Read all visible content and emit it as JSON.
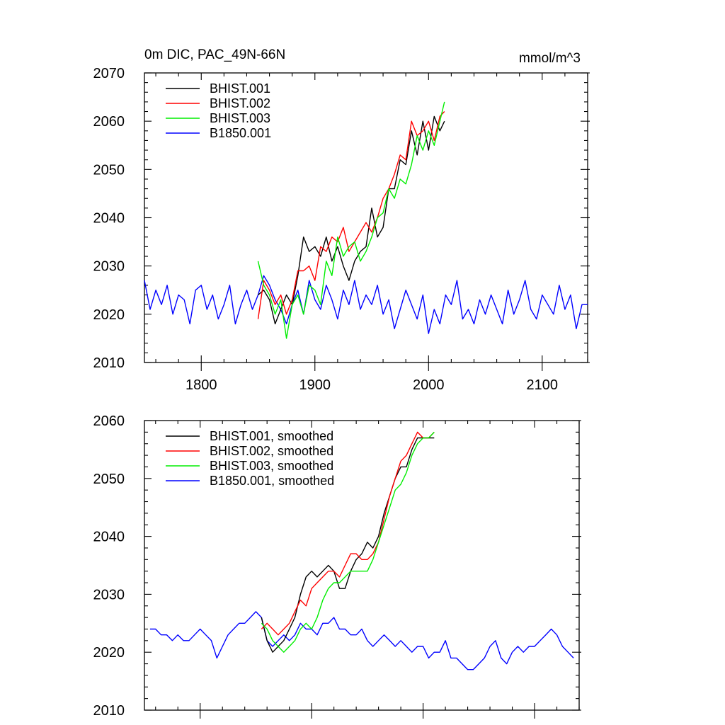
{
  "chart_data": [
    {
      "type": "line",
      "title_left": "0m DIC, PAC_49N-66N",
      "title_right": "mmol/m^3",
      "xlim": [
        1750,
        2140
      ],
      "ylim": [
        2010,
        2070
      ],
      "x_ticks": [
        1800,
        1900,
        2000,
        2100
      ],
      "y_ticks": [
        2010,
        2020,
        2030,
        2040,
        2050,
        2060,
        2070
      ],
      "x_tick_labels_visible": true,
      "legend_position": "top-left",
      "grid": false,
      "series": [
        {
          "name": "BHIST.001",
          "color": "#000000",
          "x": [
            1850,
            1855,
            1860,
            1865,
            1870,
            1875,
            1880,
            1885,
            1890,
            1895,
            1900,
            1905,
            1910,
            1915,
            1920,
            1925,
            1930,
            1935,
            1940,
            1945,
            1950,
            1955,
            1960,
            1965,
            1970,
            1975,
            1980,
            1985,
            1990,
            1995,
            2000,
            2005,
            2010,
            2014
          ],
          "y": [
            2024,
            2025,
            2023,
            2018,
            2021,
            2024,
            2022,
            2028,
            2036,
            2033,
            2034,
            2032,
            2036,
            2031,
            2034,
            2030,
            2027,
            2031,
            2033,
            2034,
            2042,
            2036,
            2038,
            2046,
            2046,
            2052,
            2051,
            2058,
            2053,
            2060,
            2054,
            2061,
            2058,
            2060
          ]
        },
        {
          "name": "BHIST.002",
          "color": "#ff0000",
          "x": [
            1850,
            1855,
            1860,
            1865,
            1870,
            1875,
            1880,
            1885,
            1890,
            1895,
            1900,
            1905,
            1910,
            1915,
            1920,
            1925,
            1930,
            1935,
            1940,
            1945,
            1950,
            1955,
            1960,
            1965,
            1970,
            1975,
            1980,
            1985,
            1990,
            1995,
            2000,
            2005,
            2010,
            2014
          ],
          "y": [
            2019,
            2027,
            2025,
            2022,
            2024,
            2020,
            2023,
            2029,
            2029,
            2030,
            2027,
            2034,
            2033,
            2036,
            2035,
            2038,
            2033,
            2035,
            2037,
            2039,
            2037,
            2040,
            2044,
            2046,
            2049,
            2053,
            2052,
            2060,
            2057,
            2058,
            2060,
            2056,
            2061,
            2062
          ]
        },
        {
          "name": "BHIST.003",
          "color": "#00ee00",
          "x": [
            1850,
            1855,
            1860,
            1865,
            1870,
            1875,
            1880,
            1885,
            1890,
            1895,
            1900,
            1905,
            1910,
            1915,
            1920,
            1925,
            1930,
            1935,
            1940,
            1945,
            1950,
            1955,
            1960,
            1965,
            1970,
            1975,
            1980,
            1985,
            1990,
            1995,
            2000,
            2005,
            2010,
            2014
          ],
          "y": [
            2031,
            2026,
            2024,
            2020,
            2023,
            2015,
            2022,
            2024,
            2020,
            2026,
            2025,
            2022,
            2031,
            2028,
            2036,
            2032,
            2034,
            2035,
            2031,
            2033,
            2036,
            2040,
            2041,
            2046,
            2044,
            2048,
            2047,
            2051,
            2057,
            2054,
            2058,
            2055,
            2060,
            2064
          ]
        },
        {
          "name": "B1850.001",
          "color": "#0000ff",
          "x": [
            1750,
            1755,
            1760,
            1765,
            1770,
            1775,
            1780,
            1785,
            1790,
            1795,
            1800,
            1805,
            1810,
            1815,
            1820,
            1825,
            1830,
            1835,
            1840,
            1845,
            1850,
            1855,
            1860,
            1865,
            1870,
            1875,
            1880,
            1885,
            1890,
            1895,
            1900,
            1905,
            1910,
            1915,
            1920,
            1925,
            1930,
            1935,
            1940,
            1945,
            1950,
            1955,
            1960,
            1965,
            1970,
            1975,
            1980,
            1985,
            1990,
            1995,
            2000,
            2005,
            2010,
            2015,
            2020,
            2025,
            2030,
            2035,
            2040,
            2045,
            2050,
            2055,
            2060,
            2065,
            2070,
            2075,
            2080,
            2085,
            2090,
            2095,
            2100,
            2105,
            2110,
            2115,
            2120,
            2125,
            2130,
            2135,
            2140
          ],
          "y": [
            2027,
            2021,
            2025,
            2022,
            2026,
            2020,
            2024,
            2023,
            2018,
            2025,
            2026,
            2021,
            2024,
            2019,
            2022,
            2026,
            2018,
            2022,
            2025,
            2021,
            2024,
            2028,
            2026,
            2023,
            2021,
            2018,
            2022,
            2025,
            2020,
            2027,
            2023,
            2021,
            2026,
            2023,
            2019,
            2025,
            2022,
            2027,
            2021,
            2024,
            2022,
            2026,
            2020,
            2023,
            2017,
            2021,
            2025,
            2022,
            2019,
            2024,
            2016,
            2021,
            2018,
            2024,
            2022,
            2027,
            2019,
            2021,
            2018,
            2023,
            2020,
            2024,
            2021,
            2018,
            2025,
            2020,
            2023,
            2027,
            2021,
            2019,
            2024,
            2022,
            2020,
            2026,
            2021,
            2024,
            2017,
            2022,
            2022
          ]
        }
      ]
    },
    {
      "type": "line",
      "xlim": [
        1750,
        2140
      ],
      "ylim": [
        2010,
        2060
      ],
      "x_ticks": [
        1800,
        1900,
        2000,
        2100
      ],
      "y_ticks": [
        2010,
        2020,
        2030,
        2040,
        2050,
        2060
      ],
      "x_tick_labels_visible": false,
      "legend_position": "top-left",
      "grid": false,
      "series": [
        {
          "name": "BHIST.001, smoothed",
          "color": "#000000",
          "x": [
            1855,
            1860,
            1865,
            1870,
            1875,
            1880,
            1885,
            1890,
            1895,
            1900,
            1905,
            1910,
            1915,
            1920,
            1925,
            1930,
            1935,
            1940,
            1945,
            1950,
            1955,
            1960,
            1965,
            1970,
            1975,
            1980,
            1985,
            1990,
            1995,
            2000,
            2005,
            2010
          ],
          "y": [
            2026,
            2022,
            2020,
            2021,
            2022,
            2024,
            2026,
            2030,
            2033,
            2034,
            2033,
            2034,
            2035,
            2034,
            2031,
            2031,
            2034,
            2036,
            2037,
            2039,
            2038,
            2040,
            2044,
            2047,
            2050,
            2052,
            2052,
            2055,
            2057,
            2057,
            2057,
            2057
          ]
        },
        {
          "name": "BHIST.002, smoothed",
          "color": "#ff0000",
          "x": [
            1855,
            1860,
            1865,
            1870,
            1875,
            1880,
            1885,
            1890,
            1895,
            1900,
            1905,
            1910,
            1915,
            1920,
            1925,
            1930,
            1935,
            1940,
            1945,
            1950,
            1955,
            1960,
            1965,
            1970,
            1975,
            1980,
            1985,
            1990,
            1995,
            2000,
            2005,
            2010
          ],
          "y": [
            2024,
            2025,
            2024,
            2023,
            2024,
            2025,
            2027,
            2029,
            2028,
            2031,
            2032,
            2033,
            2034,
            2034,
            2033,
            2035,
            2037,
            2037,
            2036,
            2036,
            2037,
            2039,
            2043,
            2047,
            2050,
            2053,
            2054,
            2056,
            2058,
            2057,
            2057,
            2058
          ]
        },
        {
          "name": "BHIST.003, smoothed",
          "color": "#00ee00",
          "x": [
            1855,
            1860,
            1865,
            1870,
            1875,
            1880,
            1885,
            1890,
            1895,
            1900,
            1905,
            1910,
            1915,
            1920,
            1925,
            1930,
            1935,
            1940,
            1945,
            1950,
            1955,
            1960,
            1965,
            1970,
            1975,
            1980,
            1985,
            1990,
            1995,
            2000,
            2005,
            2010
          ],
          "y": [
            2025,
            2024,
            2022,
            2021,
            2020,
            2021,
            2022,
            2024,
            2025,
            2024,
            2026,
            2029,
            2031,
            2032,
            2032,
            2033,
            2034,
            2034,
            2034,
            2034,
            2036,
            2039,
            2042,
            2045,
            2048,
            2049,
            2051,
            2054,
            2056,
            2057,
            2057,
            2058
          ]
        },
        {
          "name": "B1850.001, smoothed",
          "color": "#0000ff",
          "x": [
            1755,
            1760,
            1765,
            1770,
            1775,
            1780,
            1785,
            1790,
            1795,
            1800,
            1805,
            1810,
            1815,
            1820,
            1825,
            1830,
            1835,
            1840,
            1845,
            1850,
            1855,
            1860,
            1865,
            1870,
            1875,
            1880,
            1885,
            1890,
            1895,
            1900,
            1905,
            1910,
            1915,
            1920,
            1925,
            1930,
            1935,
            1940,
            1945,
            1950,
            1955,
            1960,
            1965,
            1970,
            1975,
            1980,
            1985,
            1990,
            1995,
            2000,
            2005,
            2010,
            2015,
            2020,
            2025,
            2030,
            2035,
            2040,
            2045,
            2050,
            2055,
            2060,
            2065,
            2070,
            2075,
            2080,
            2085,
            2090,
            2095,
            2100,
            2105,
            2110,
            2115,
            2120,
            2125,
            2130,
            2135
          ],
          "y": [
            2024,
            2024,
            2023,
            2023,
            2022,
            2023,
            2022,
            2022,
            2023,
            2024,
            2023,
            2022,
            2019,
            2021,
            2023,
            2024,
            2025,
            2025,
            2026,
            2027,
            2026,
            2022,
            2021,
            2022,
            2023,
            2022,
            2023,
            2025,
            2024,
            2024,
            2023,
            2025,
            2025,
            2026,
            2024,
            2024,
            2023,
            2023,
            2024,
            2022,
            2021,
            2022,
            2023,
            2022,
            2021,
            2022,
            2021,
            2020,
            2021,
            2021,
            2019,
            2020,
            2020,
            2022,
            2019,
            2019,
            2018,
            2017,
            2017,
            2018,
            2019,
            2021,
            2022,
            2019,
            2018,
            2020,
            2021,
            2020,
            2021,
            2021,
            2022,
            2023,
            2024,
            2023,
            2021,
            2020,
            2019
          ]
        }
      ]
    }
  ]
}
